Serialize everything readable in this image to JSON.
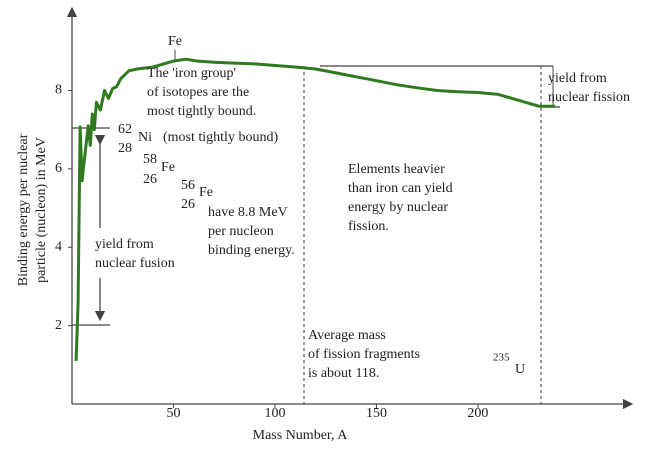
{
  "chart_data": {
    "type": "line",
    "xlabel": "Mass Number, A",
    "ylabel": [
      "Binding energy per nuclear",
      "particle (nucleon) in MeV"
    ],
    "x": [
      2,
      3,
      4,
      5,
      6,
      8,
      9,
      10,
      11,
      12,
      14,
      16,
      18,
      20,
      22,
      24,
      28,
      32,
      40,
      50,
      56,
      62,
      70,
      80,
      90,
      100,
      110,
      120,
      130,
      140,
      150,
      160,
      170,
      180,
      190,
      200,
      210,
      220,
      230,
      238
    ],
    "values": [
      1.1,
      2.6,
      7.07,
      5.7,
      6.2,
      7.1,
      6.6,
      7.4,
      7.0,
      7.7,
      7.5,
      8.0,
      7.8,
      8.05,
      8.1,
      8.3,
      8.5,
      8.55,
      8.6,
      8.75,
      8.8,
      8.75,
      8.72,
      8.7,
      8.68,
      8.64,
      8.6,
      8.55,
      8.45,
      8.35,
      8.25,
      8.15,
      8.07,
      8.0,
      7.97,
      7.95,
      7.9,
      7.75,
      7.6,
      7.6
    ],
    "color": "#2f7a1f",
    "xlim": [
      0,
      270
    ],
    "ylim": [
      0,
      9.8
    ],
    "xticks": [
      50,
      100,
      150,
      200
    ],
    "yticks": [
      2,
      4,
      6,
      8
    ],
    "annotations": [
      [
        "Fe"
      ],
      [
        "The 'iron group'",
        "of isotopes are the",
        "most tightly bound."
      ],
      [
        "62"
      ],
      [
        "28"
      ],
      [
        "Ni"
      ],
      [
        "(most tightly bound)"
      ],
      [
        "58"
      ],
      [
        "26"
      ],
      [
        "Fe"
      ],
      [
        "56"
      ],
      [
        "26"
      ],
      [
        "Fe"
      ],
      [
        "have 8.8 MeV",
        "per nucleon",
        "binding energy."
      ],
      [
        "yield from",
        "nuclear fusion"
      ],
      [
        "Elements heavier",
        "than iron can yield",
        "energy by nuclear",
        "fission."
      ],
      [
        "yield from",
        "nuclear fission"
      ],
      [
        "Average mass",
        "of fission fragments",
        "is about 118."
      ],
      [
        "235"
      ],
      [
        "U"
      ]
    ]
  }
}
